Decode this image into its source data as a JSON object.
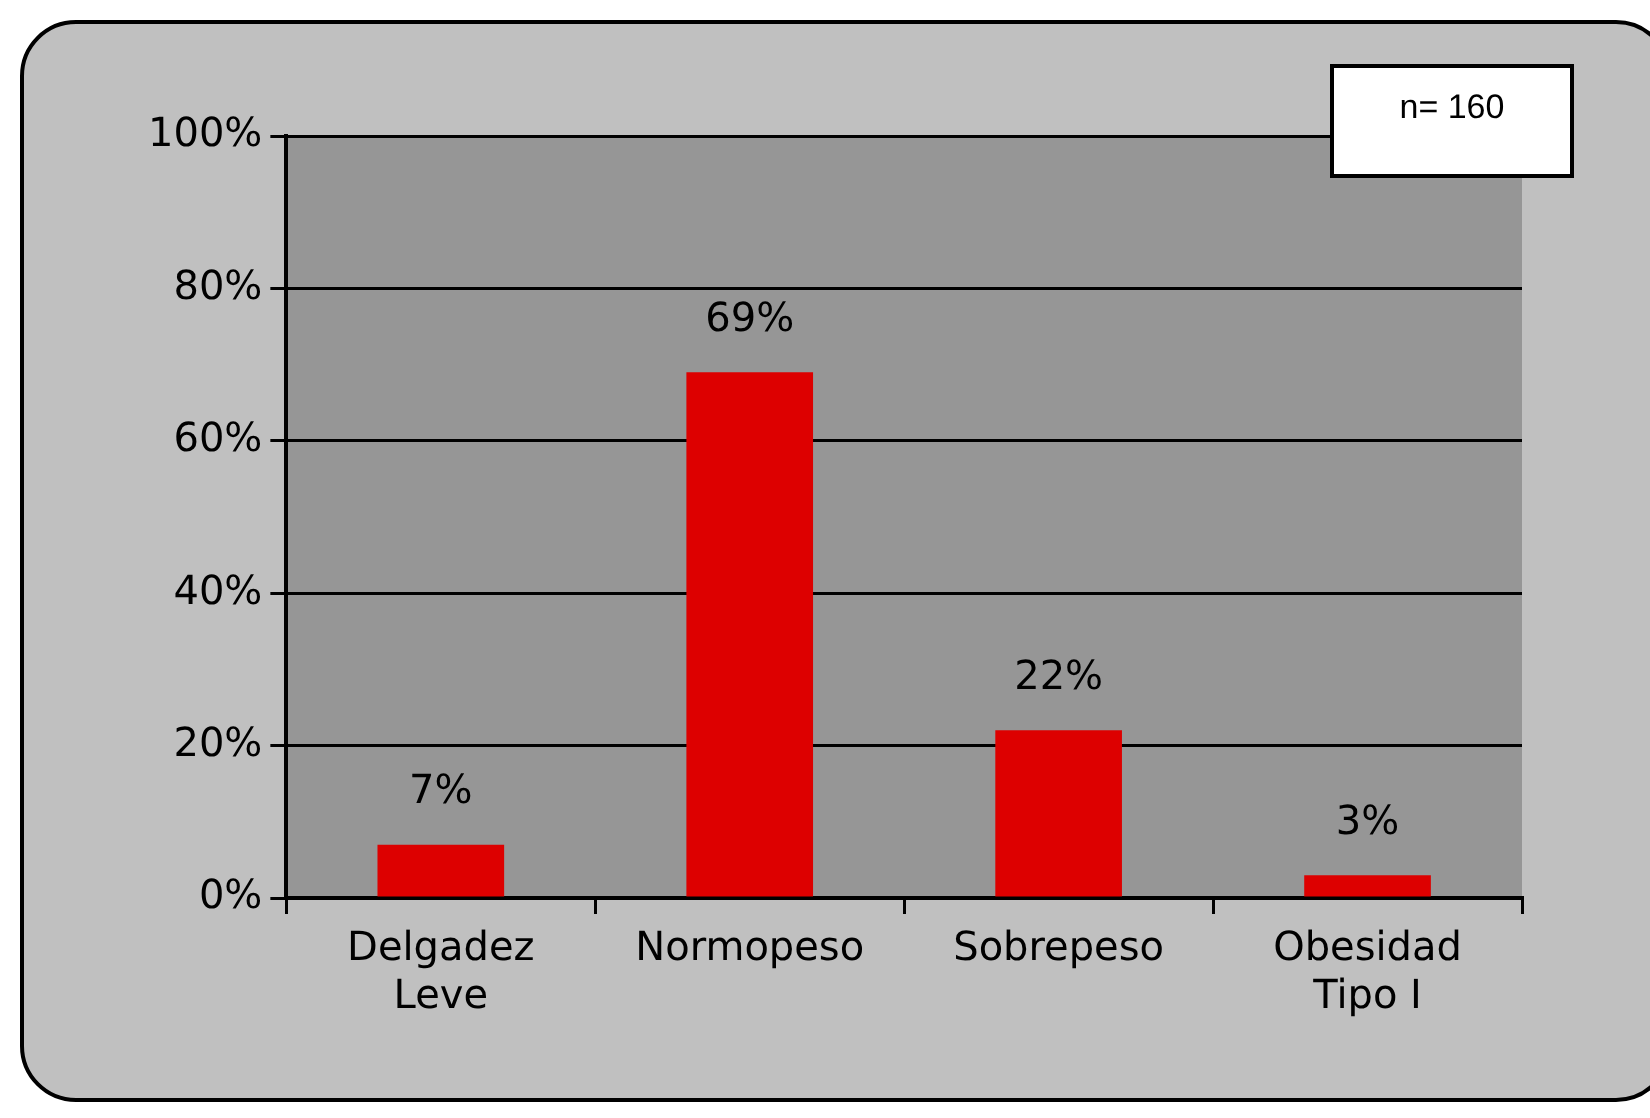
{
  "chart_data": {
    "type": "bar",
    "categories": [
      "Delgadez Leve",
      "Normopeso",
      "Sobrepeso",
      "Obesidad Tipo I"
    ],
    "values": [
      7,
      69,
      22,
      3
    ],
    "color": "#dd0000",
    "value_labels": [
      "7%",
      "69%",
      "22%",
      "3%"
    ],
    "ylim": [
      0,
      100
    ],
    "yticks": [
      {
        "value": 0,
        "label": "0%"
      },
      {
        "value": 20,
        "label": "20%"
      },
      {
        "value": 40,
        "label": "40%"
      },
      {
        "value": 60,
        "label": "60%"
      },
      {
        "value": 80,
        "label": "80%"
      },
      {
        "value": 100,
        "label": "100%"
      }
    ],
    "grid": "y",
    "annotations": [
      "n= 160"
    ]
  }
}
